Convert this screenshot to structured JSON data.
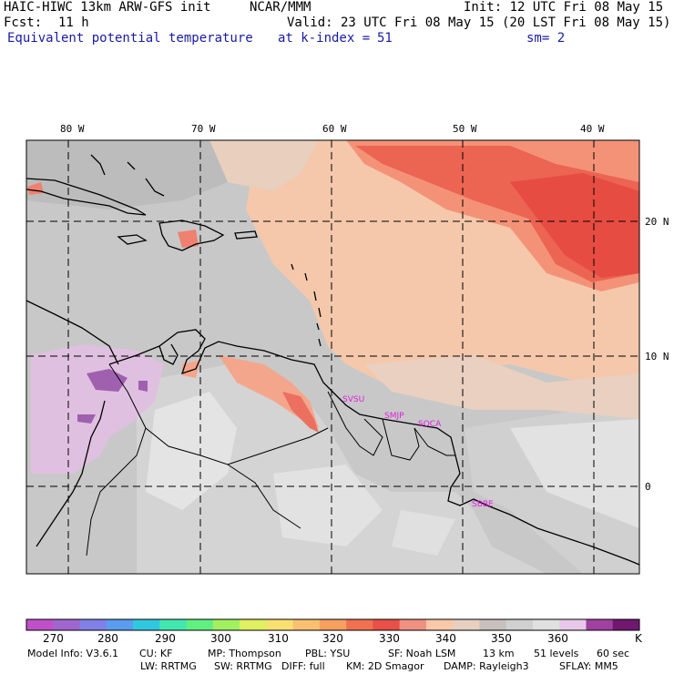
{
  "header": {
    "model": "HAIC-HIWC 13km ARW-GFS init",
    "org": "NCAR/MMM",
    "init": "Init: 12 UTC Fri 08 May 15",
    "fcst_label": "Fcst:",
    "fcst_value": "11 h",
    "valid": "Valid: 23 UTC Fri 08 May 15 (20 LST Fri 08 May 15)",
    "field": "Equivalent potential temperature",
    "level": "at k-index =",
    "level_value": "51",
    "smooth": "sm= 2"
  },
  "map": {
    "lon_labels": [
      "80 W",
      "70 W",
      "60 W",
      "50 W",
      "40 W"
    ],
    "lat_labels": [
      "20 N",
      "10 N",
      "0"
    ],
    "stations": [
      "SVSU",
      "SMJP",
      "SOCA",
      "SBBE"
    ]
  },
  "colorbar": {
    "colors": [
      "#c050c8",
      "#a066d0",
      "#8080e8",
      "#5a9cf0",
      "#30c8e0",
      "#40e8b0",
      "#60f080",
      "#a0f060",
      "#e0f060",
      "#f8e070",
      "#f8c070",
      "#f8a060",
      "#f07050",
      "#e85048",
      "#f09080",
      "#f8c8a8",
      "#e8d0c0",
      "#c8c0bc",
      "#d0d0d0",
      "#e0e0e0",
      "#e8c8e8",
      "#a040a0",
      "#701870"
    ],
    "tick_labels": [
      "270",
      "280",
      "290",
      "300",
      "310",
      "320",
      "330",
      "340",
      "350",
      "360"
    ],
    "unit": "K"
  },
  "info": {
    "line1": [
      "Model Info: V3.6.1",
      "CU: KF",
      "MP: Thompson",
      "PBL: YSU",
      "SF: Noah LSM",
      "13 km",
      "51 levels",
      "60 sec"
    ],
    "line2": [
      "LW: RRTMG",
      "SW: RRTMG",
      "DIFF: full",
      "KM: 2D Smagor",
      "DAMP: Rayleigh3",
      "SFLAY: MM5"
    ]
  }
}
